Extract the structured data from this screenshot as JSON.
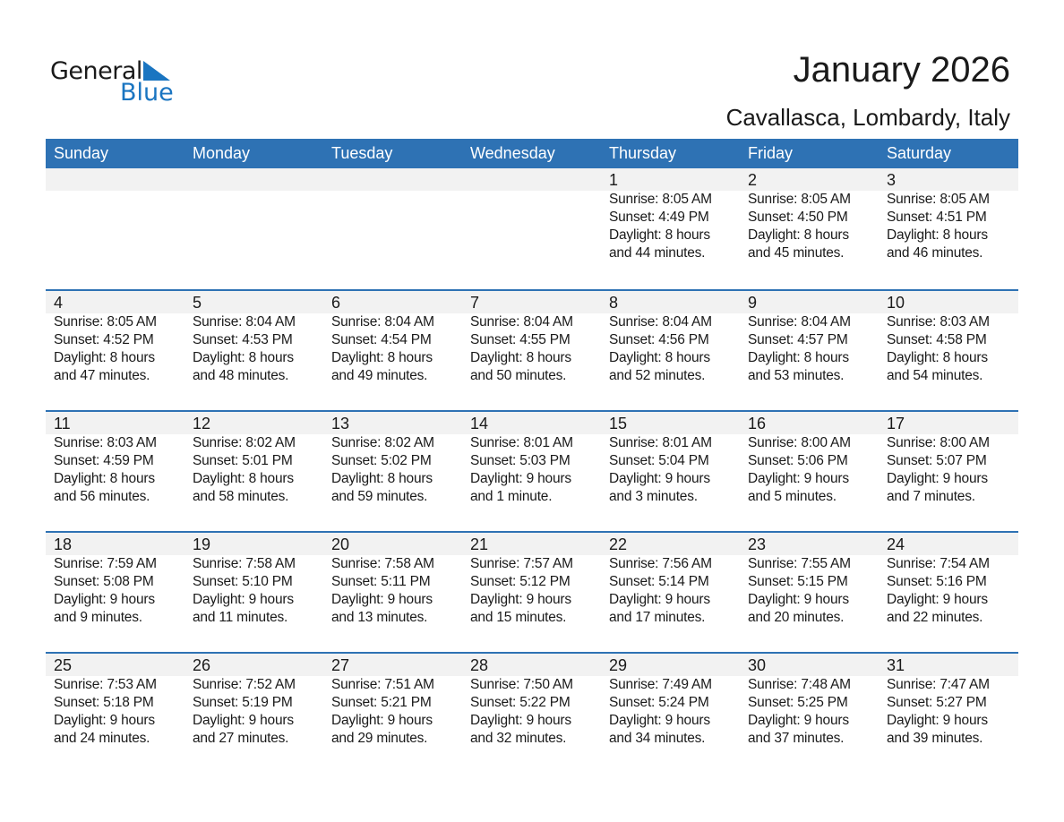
{
  "logo": {
    "text_general": "General",
    "text_blue": "Blue",
    "accent": "#1a75c1"
  },
  "header": {
    "title": "January 2026",
    "location": "Cavallasca, Lombardy, Italy"
  },
  "colors": {
    "header_bg": "#2e72b4",
    "band_bg": "#f2f2f2"
  },
  "weekdays": [
    "Sunday",
    "Monday",
    "Tuesday",
    "Wednesday",
    "Thursday",
    "Friday",
    "Saturday"
  ],
  "weeks": [
    [
      null,
      null,
      null,
      null,
      {
        "day": "1",
        "sunrise": "Sunrise: 8:05 AM",
        "sunset": "Sunset: 4:49 PM",
        "daylight": "Daylight: 8 hours",
        "minutes": "and 44 minutes."
      },
      {
        "day": "2",
        "sunrise": "Sunrise: 8:05 AM",
        "sunset": "Sunset: 4:50 PM",
        "daylight": "Daylight: 8 hours",
        "minutes": "and 45 minutes."
      },
      {
        "day": "3",
        "sunrise": "Sunrise: 8:05 AM",
        "sunset": "Sunset: 4:51 PM",
        "daylight": "Daylight: 8 hours",
        "minutes": "and 46 minutes."
      }
    ],
    [
      {
        "day": "4",
        "sunrise": "Sunrise: 8:05 AM",
        "sunset": "Sunset: 4:52 PM",
        "daylight": "Daylight: 8 hours",
        "minutes": "and 47 minutes."
      },
      {
        "day": "5",
        "sunrise": "Sunrise: 8:04 AM",
        "sunset": "Sunset: 4:53 PM",
        "daylight": "Daylight: 8 hours",
        "minutes": "and 48 minutes."
      },
      {
        "day": "6",
        "sunrise": "Sunrise: 8:04 AM",
        "sunset": "Sunset: 4:54 PM",
        "daylight": "Daylight: 8 hours",
        "minutes": "and 49 minutes."
      },
      {
        "day": "7",
        "sunrise": "Sunrise: 8:04 AM",
        "sunset": "Sunset: 4:55 PM",
        "daylight": "Daylight: 8 hours",
        "minutes": "and 50 minutes."
      },
      {
        "day": "8",
        "sunrise": "Sunrise: 8:04 AM",
        "sunset": "Sunset: 4:56 PM",
        "daylight": "Daylight: 8 hours",
        "minutes": "and 52 minutes."
      },
      {
        "day": "9",
        "sunrise": "Sunrise: 8:04 AM",
        "sunset": "Sunset: 4:57 PM",
        "daylight": "Daylight: 8 hours",
        "minutes": "and 53 minutes."
      },
      {
        "day": "10",
        "sunrise": "Sunrise: 8:03 AM",
        "sunset": "Sunset: 4:58 PM",
        "daylight": "Daylight: 8 hours",
        "minutes": "and 54 minutes."
      }
    ],
    [
      {
        "day": "11",
        "sunrise": "Sunrise: 8:03 AM",
        "sunset": "Sunset: 4:59 PM",
        "daylight": "Daylight: 8 hours",
        "minutes": "and 56 minutes."
      },
      {
        "day": "12",
        "sunrise": "Sunrise: 8:02 AM",
        "sunset": "Sunset: 5:01 PM",
        "daylight": "Daylight: 8 hours",
        "minutes": "and 58 minutes."
      },
      {
        "day": "13",
        "sunrise": "Sunrise: 8:02 AM",
        "sunset": "Sunset: 5:02 PM",
        "daylight": "Daylight: 8 hours",
        "minutes": "and 59 minutes."
      },
      {
        "day": "14",
        "sunrise": "Sunrise: 8:01 AM",
        "sunset": "Sunset: 5:03 PM",
        "daylight": "Daylight: 9 hours",
        "minutes": "and 1 minute."
      },
      {
        "day": "15",
        "sunrise": "Sunrise: 8:01 AM",
        "sunset": "Sunset: 5:04 PM",
        "daylight": "Daylight: 9 hours",
        "minutes": "and 3 minutes."
      },
      {
        "day": "16",
        "sunrise": "Sunrise: 8:00 AM",
        "sunset": "Sunset: 5:06 PM",
        "daylight": "Daylight: 9 hours",
        "minutes": "and 5 minutes."
      },
      {
        "day": "17",
        "sunrise": "Sunrise: 8:00 AM",
        "sunset": "Sunset: 5:07 PM",
        "daylight": "Daylight: 9 hours",
        "minutes": "and 7 minutes."
      }
    ],
    [
      {
        "day": "18",
        "sunrise": "Sunrise: 7:59 AM",
        "sunset": "Sunset: 5:08 PM",
        "daylight": "Daylight: 9 hours",
        "minutes": "and 9 minutes."
      },
      {
        "day": "19",
        "sunrise": "Sunrise: 7:58 AM",
        "sunset": "Sunset: 5:10 PM",
        "daylight": "Daylight: 9 hours",
        "minutes": "and 11 minutes."
      },
      {
        "day": "20",
        "sunrise": "Sunrise: 7:58 AM",
        "sunset": "Sunset: 5:11 PM",
        "daylight": "Daylight: 9 hours",
        "minutes": "and 13 minutes."
      },
      {
        "day": "21",
        "sunrise": "Sunrise: 7:57 AM",
        "sunset": "Sunset: 5:12 PM",
        "daylight": "Daylight: 9 hours",
        "minutes": "and 15 minutes."
      },
      {
        "day": "22",
        "sunrise": "Sunrise: 7:56 AM",
        "sunset": "Sunset: 5:14 PM",
        "daylight": "Daylight: 9 hours",
        "minutes": "and 17 minutes."
      },
      {
        "day": "23",
        "sunrise": "Sunrise: 7:55 AM",
        "sunset": "Sunset: 5:15 PM",
        "daylight": "Daylight: 9 hours",
        "minutes": "and 20 minutes."
      },
      {
        "day": "24",
        "sunrise": "Sunrise: 7:54 AM",
        "sunset": "Sunset: 5:16 PM",
        "daylight": "Daylight: 9 hours",
        "minutes": "and 22 minutes."
      }
    ],
    [
      {
        "day": "25",
        "sunrise": "Sunrise: 7:53 AM",
        "sunset": "Sunset: 5:18 PM",
        "daylight": "Daylight: 9 hours",
        "minutes": "and 24 minutes."
      },
      {
        "day": "26",
        "sunrise": "Sunrise: 7:52 AM",
        "sunset": "Sunset: 5:19 PM",
        "daylight": "Daylight: 9 hours",
        "minutes": "and 27 minutes."
      },
      {
        "day": "27",
        "sunrise": "Sunrise: 7:51 AM",
        "sunset": "Sunset: 5:21 PM",
        "daylight": "Daylight: 9 hours",
        "minutes": "and 29 minutes."
      },
      {
        "day": "28",
        "sunrise": "Sunrise: 7:50 AM",
        "sunset": "Sunset: 5:22 PM",
        "daylight": "Daylight: 9 hours",
        "minutes": "and 32 minutes."
      },
      {
        "day": "29",
        "sunrise": "Sunrise: 7:49 AM",
        "sunset": "Sunset: 5:24 PM",
        "daylight": "Daylight: 9 hours",
        "minutes": "and 34 minutes."
      },
      {
        "day": "30",
        "sunrise": "Sunrise: 7:48 AM",
        "sunset": "Sunset: 5:25 PM",
        "daylight": "Daylight: 9 hours",
        "minutes": "and 37 minutes."
      },
      {
        "day": "31",
        "sunrise": "Sunrise: 7:47 AM",
        "sunset": "Sunset: 5:27 PM",
        "daylight": "Daylight: 9 hours",
        "minutes": "and 39 minutes."
      }
    ]
  ]
}
